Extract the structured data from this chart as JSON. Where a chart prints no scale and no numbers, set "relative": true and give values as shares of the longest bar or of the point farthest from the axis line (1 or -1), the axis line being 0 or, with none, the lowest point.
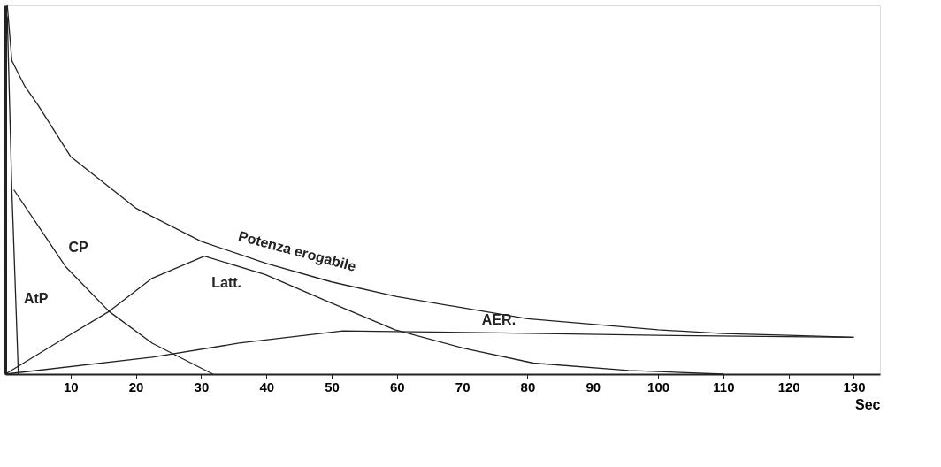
{
  "chart_data": {
    "type": "line",
    "relative": true,
    "xlabel": "Sec",
    "xlim": [
      0,
      134
    ],
    "xticks": [
      10,
      20,
      30,
      40,
      50,
      60,
      70,
      80,
      90,
      100,
      110,
      120,
      130
    ],
    "grid": false,
    "marker": "none",
    "line_style": "solid",
    "series": [
      {
        "name": "Potenza erogabile",
        "color": "#222222",
        "x": [
          0.3,
          1,
          3,
          5,
          10,
          20,
          30,
          40,
          50,
          60,
          70,
          80,
          90,
          100,
          110,
          120,
          130
        ],
        "values": [
          1.0,
          0.85,
          0.78,
          0.73,
          0.59,
          0.45,
          0.36,
          0.3,
          0.25,
          0.21,
          0.18,
          0.15,
          0.135,
          0.12,
          0.11,
          0.105,
          0.1
        ]
      },
      {
        "name": "CP",
        "color": "#222222",
        "x": [
          1.3,
          9.3,
          15.9,
          22.5,
          31.8
        ],
        "values": [
          0.5,
          0.29,
          0.17,
          0.084,
          0
        ]
      },
      {
        "name": "AtP",
        "color": "#222222",
        "x": [
          0.3,
          1,
          2
        ],
        "values": [
          0.97,
          0.5,
          0
        ]
      },
      {
        "name": "Latt.",
        "color": "#222222",
        "x": [
          0,
          9.3,
          15.9,
          22.5,
          30.5,
          39.8,
          49,
          59.7,
          70.3,
          80.9,
          95.5,
          110
        ],
        "values": [
          0,
          0.1,
          0.17,
          0.26,
          0.32,
          0.27,
          0.2,
          0.12,
          0.07,
          0.03,
          0.01,
          0
        ]
      },
      {
        "name": "AER.",
        "color": "#222222",
        "x": [
          0,
          22.5,
          35.8,
          51.7,
          62.3,
          75.6,
          100,
          130
        ],
        "values": [
          0,
          0.046,
          0.084,
          0.117,
          0.115,
          0.112,
          0.105,
          0.1
        ]
      }
    ]
  }
}
